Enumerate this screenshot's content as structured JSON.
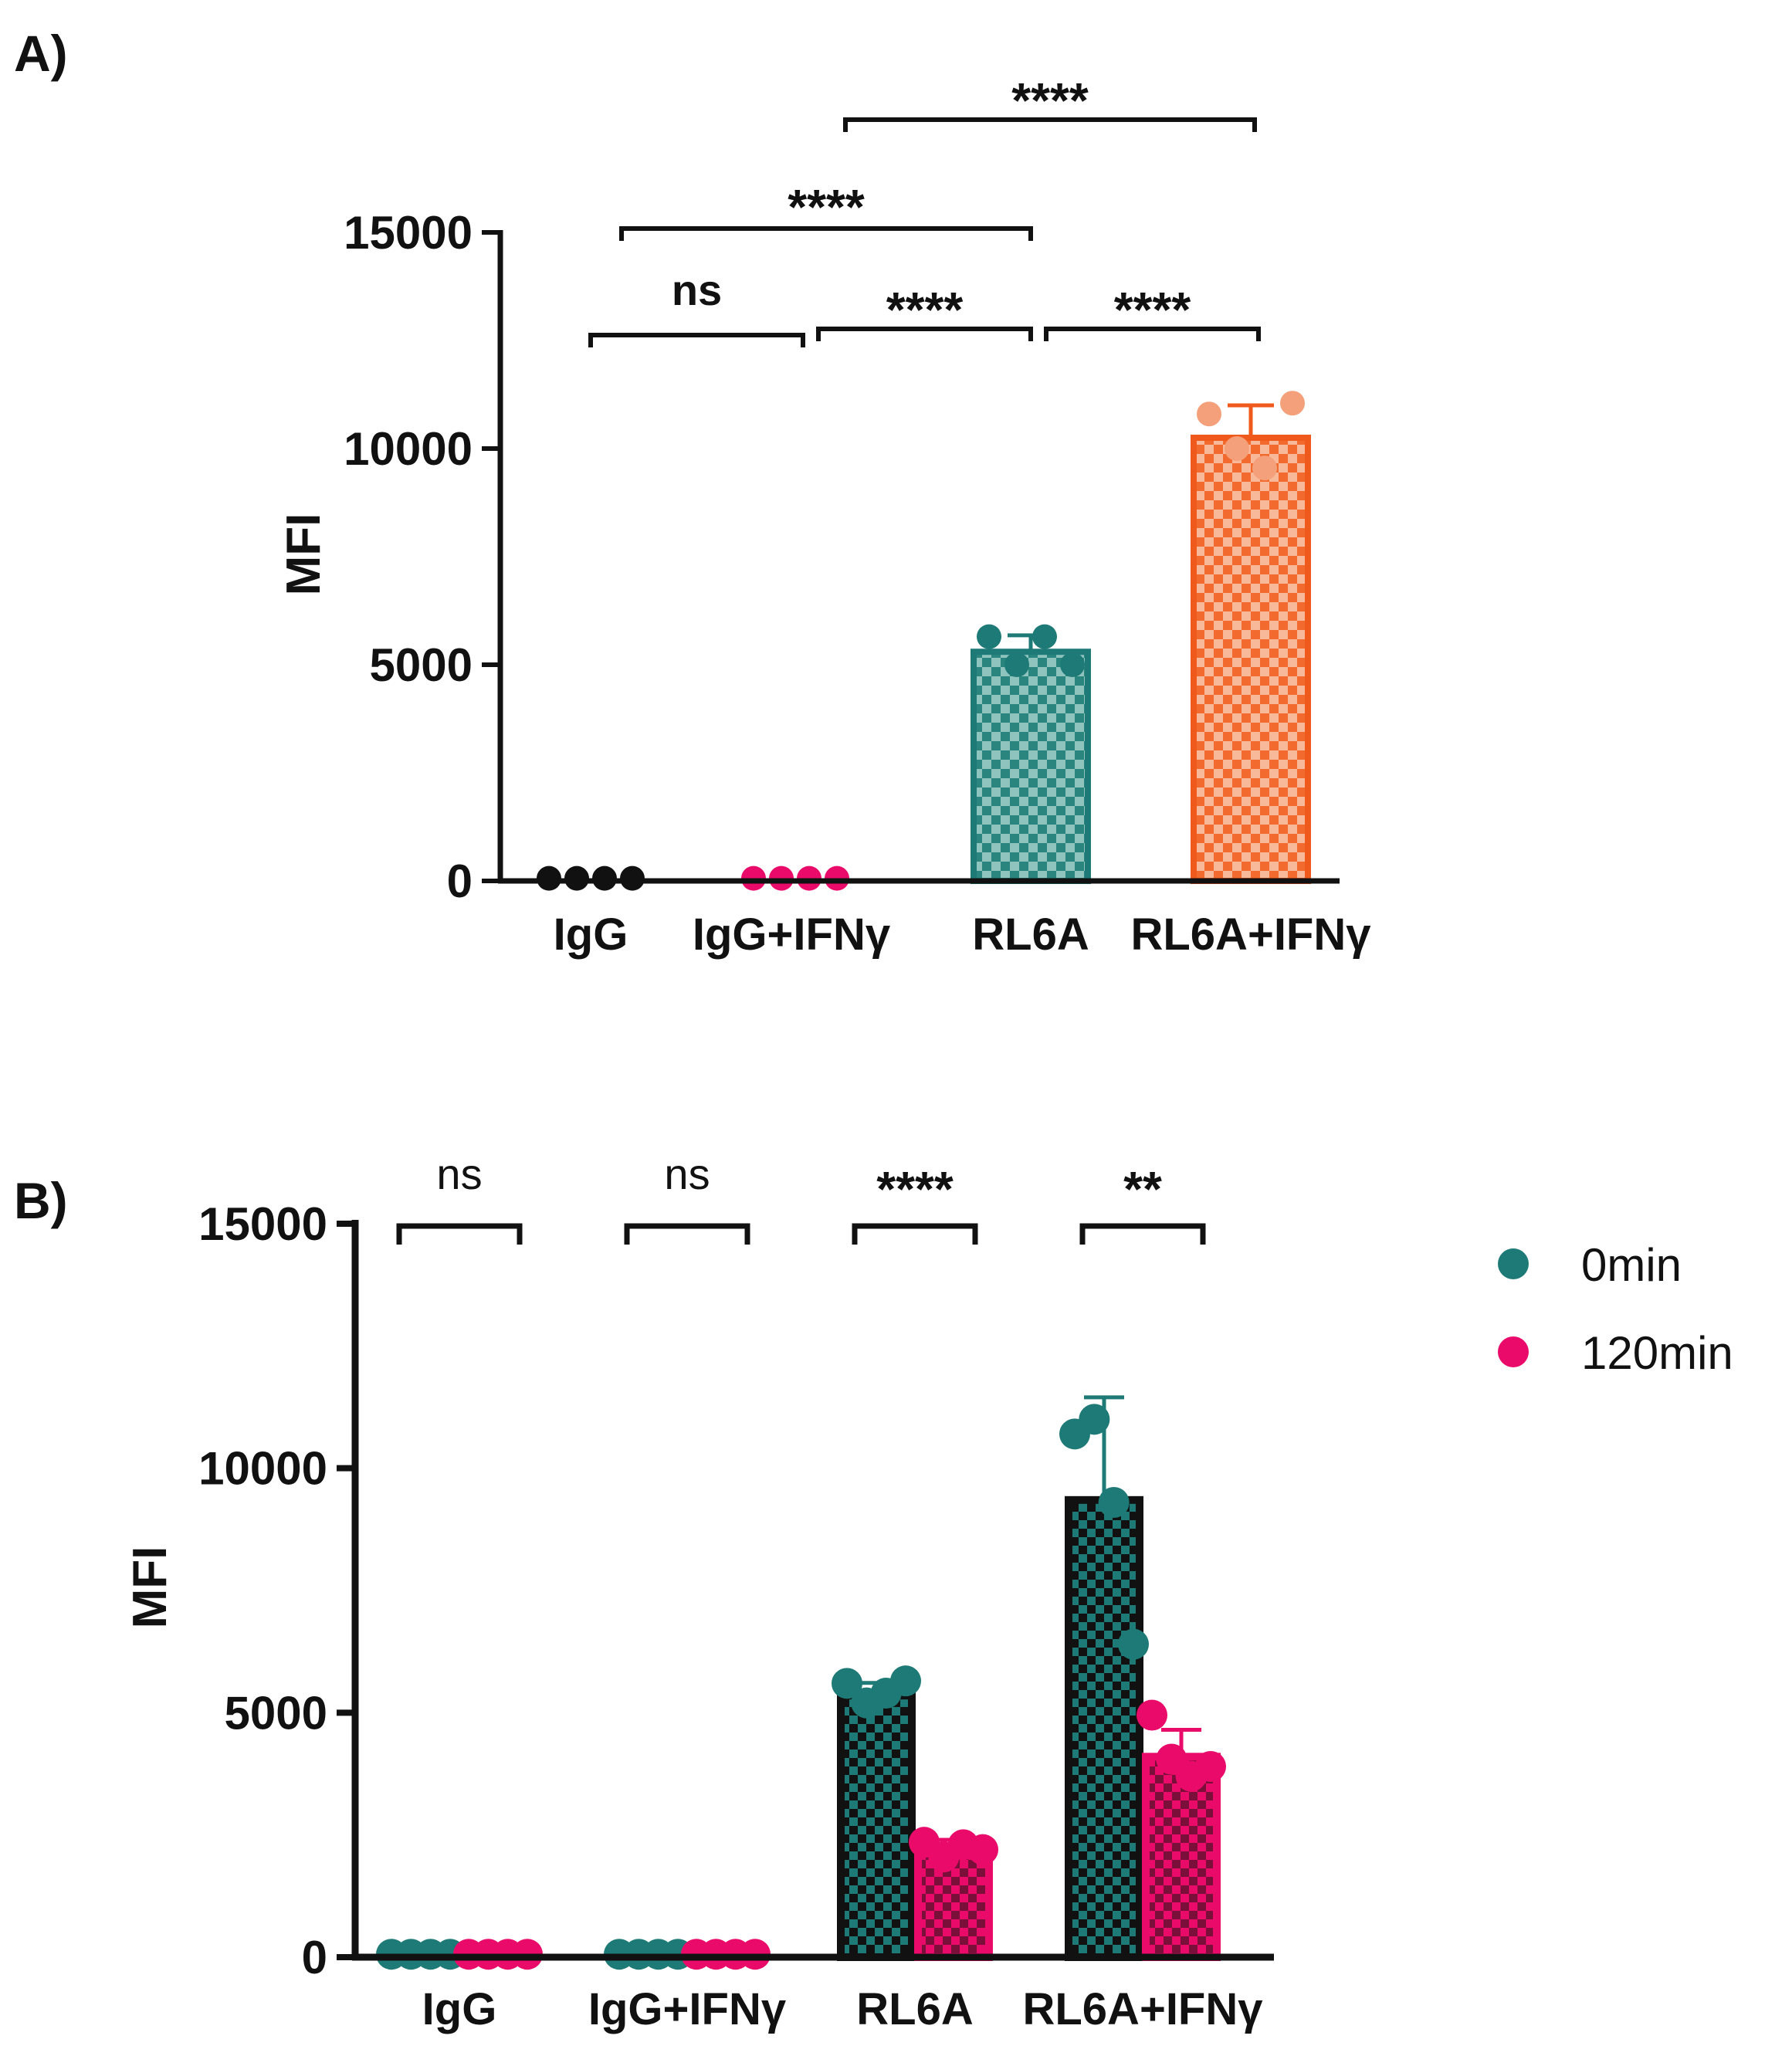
{
  "chart_data": [
    {
      "panel": "A)",
      "type": "bar",
      "ylabel": "MFI",
      "ylim": [
        0,
        15000
      ],
      "yticks": [
        "0",
        "5000",
        "10000",
        "15000"
      ],
      "categories": [
        "IgG",
        "IgG+IFNγ",
        "RL6A",
        "RL6A+IFNγ"
      ],
      "bars": [
        {
          "category": "IgG",
          "value": 60,
          "sd": 0,
          "points": [
            60,
            60,
            60,
            60
          ],
          "bar_color": "#111111",
          "fill_color": "#111111",
          "point_color": "#111111"
        },
        {
          "category": "IgG+IFNγ",
          "value": 60,
          "sd": 0,
          "points": [
            60,
            60,
            60,
            60
          ],
          "bar_color": "#ea0a6a",
          "fill_color": "#ea0a6a",
          "point_color": "#ea0a6a"
        },
        {
          "category": "RL6A",
          "value": 5300,
          "sd": 380,
          "points": [
            5650,
            5000,
            5650,
            5000
          ],
          "bar_color": "#1e7a76",
          "fill_color": "#7fb8b4",
          "point_color": "#1e7a76"
        },
        {
          "category": "RL6A+IFNγ",
          "value": 10250,
          "sd": 750,
          "points": [
            10800,
            10000,
            9550,
            11050
          ],
          "bar_color": "#ef5a1c",
          "fill_color": "#f7b08f",
          "point_color": "#f4a07a"
        }
      ],
      "significance": [
        {
          "from": 0,
          "to": 1,
          "label": "ns"
        },
        {
          "from": 1,
          "to": 2,
          "label": "****"
        },
        {
          "from": 2,
          "to": 3,
          "label": "****"
        },
        {
          "from": 0,
          "to": 2,
          "label": "****"
        },
        {
          "from": 1,
          "to": 3,
          "label": "****"
        }
      ]
    },
    {
      "panel": "B)",
      "type": "bar",
      "ylabel": "MFI",
      "ylim": [
        0,
        15000
      ],
      "yticks": [
        "0",
        "5000",
        "10000",
        "15000"
      ],
      "categories": [
        "IgG",
        "IgG+IFNγ",
        "RL6A",
        "RL6A+IFNγ"
      ],
      "series": [
        {
          "name": "0min",
          "color": "#1e7a76",
          "values": [
            60,
            60,
            5350,
            9350
          ],
          "sd": [
            0,
            0,
            260,
            2100
          ],
          "points": [
            [
              60,
              60,
              60,
              60
            ],
            [
              60,
              60,
              60,
              60
            ],
            [
              5600,
              5200,
              5400,
              5650
            ],
            [
              10700,
              11000,
              9300,
              6400
            ]
          ]
        },
        {
          "name": "120min",
          "color": "#ea0a6a",
          "values": [
            60,
            60,
            2200,
            4100
          ],
          "sd": [
            0,
            0,
            200,
            550
          ],
          "points": [
            [
              60,
              60,
              60,
              60
            ],
            [
              60,
              60,
              60,
              60
            ],
            [
              2350,
              2050,
              2300,
              2200
            ],
            [
              4950,
              4050,
              3700,
              3900
            ]
          ]
        }
      ],
      "significance": [
        {
          "category": 0,
          "label": "ns"
        },
        {
          "category": 1,
          "label": "ns"
        },
        {
          "category": 2,
          "label": "****"
        },
        {
          "category": 3,
          "label": "**"
        }
      ],
      "legend": {
        "position": "right",
        "entries": [
          "0min",
          "120min"
        ]
      }
    }
  ]
}
